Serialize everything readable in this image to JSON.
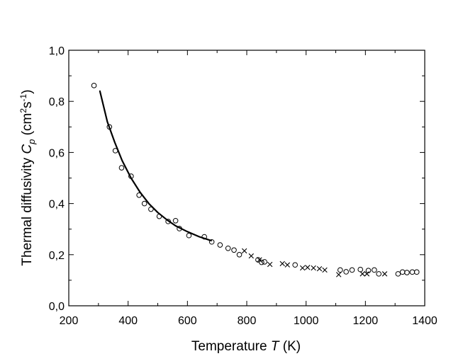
{
  "chart_data": {
    "type": "scatter",
    "xlabel": "Temperature T (K)",
    "ylabel": "Thermal diffusivity C_p (cm^2 s^-1)",
    "xlim": [
      200,
      1400
    ],
    "ylim": [
      0.0,
      1.0
    ],
    "x_ticks": [
      "200",
      "400",
      "600",
      "800",
      "1000",
      "1200",
      "1400"
    ],
    "y_ticks": [
      "0,0",
      "0,2",
      "0,4",
      "0,6",
      "0,8",
      "1,0"
    ],
    "grid": false,
    "series": [
      {
        "marker": "circle",
        "points": [
          [
            285,
            0.862
          ],
          [
            337,
            0.7
          ],
          [
            357,
            0.607
          ],
          [
            378,
            0.54
          ],
          [
            410,
            0.507
          ],
          [
            437,
            0.433
          ],
          [
            455,
            0.4
          ],
          [
            477,
            0.378
          ],
          [
            505,
            0.35
          ],
          [
            535,
            0.33
          ],
          [
            560,
            0.333
          ],
          [
            573,
            0.302
          ],
          [
            605,
            0.275
          ],
          [
            657,
            0.27
          ],
          [
            682,
            0.25
          ],
          [
            710,
            0.238
          ],
          [
            737,
            0.225
          ],
          [
            757,
            0.218
          ],
          [
            775,
            0.2
          ],
          [
            838,
            0.18
          ],
          [
            850,
            0.17
          ],
          [
            860,
            0.172
          ],
          [
            963,
            0.16
          ],
          [
            1115,
            0.14
          ],
          [
            1135,
            0.133
          ],
          [
            1155,
            0.14
          ],
          [
            1183,
            0.142
          ],
          [
            1210,
            0.138
          ],
          [
            1230,
            0.14
          ],
          [
            1245,
            0.125
          ],
          [
            1310,
            0.125
          ],
          [
            1325,
            0.132
          ],
          [
            1340,
            0.13
          ],
          [
            1358,
            0.132
          ],
          [
            1373,
            0.132
          ]
        ]
      },
      {
        "marker": "cross",
        "points": [
          [
            792,
            0.215
          ],
          [
            815,
            0.195
          ],
          [
            843,
            0.18
          ],
          [
            878,
            0.162
          ],
          [
            920,
            0.165
          ],
          [
            937,
            0.16
          ],
          [
            988,
            0.148
          ],
          [
            1005,
            0.15
          ],
          [
            1025,
            0.148
          ],
          [
            1045,
            0.145
          ],
          [
            1063,
            0.14
          ],
          [
            1110,
            0.122
          ],
          [
            1190,
            0.125
          ],
          [
            1205,
            0.125
          ],
          [
            1265,
            0.125
          ]
        ]
      },
      {
        "type": "line",
        "points": [
          [
            305,
            0.84
          ],
          [
            330,
            0.72
          ],
          [
            355,
            0.64
          ],
          [
            380,
            0.568
          ],
          [
            410,
            0.5
          ],
          [
            440,
            0.445
          ],
          [
            470,
            0.4
          ],
          [
            500,
            0.365
          ],
          [
            530,
            0.337
          ],
          [
            560,
            0.313
          ],
          [
            600,
            0.29
          ],
          [
            640,
            0.27
          ],
          [
            680,
            0.255
          ]
        ]
      }
    ]
  }
}
